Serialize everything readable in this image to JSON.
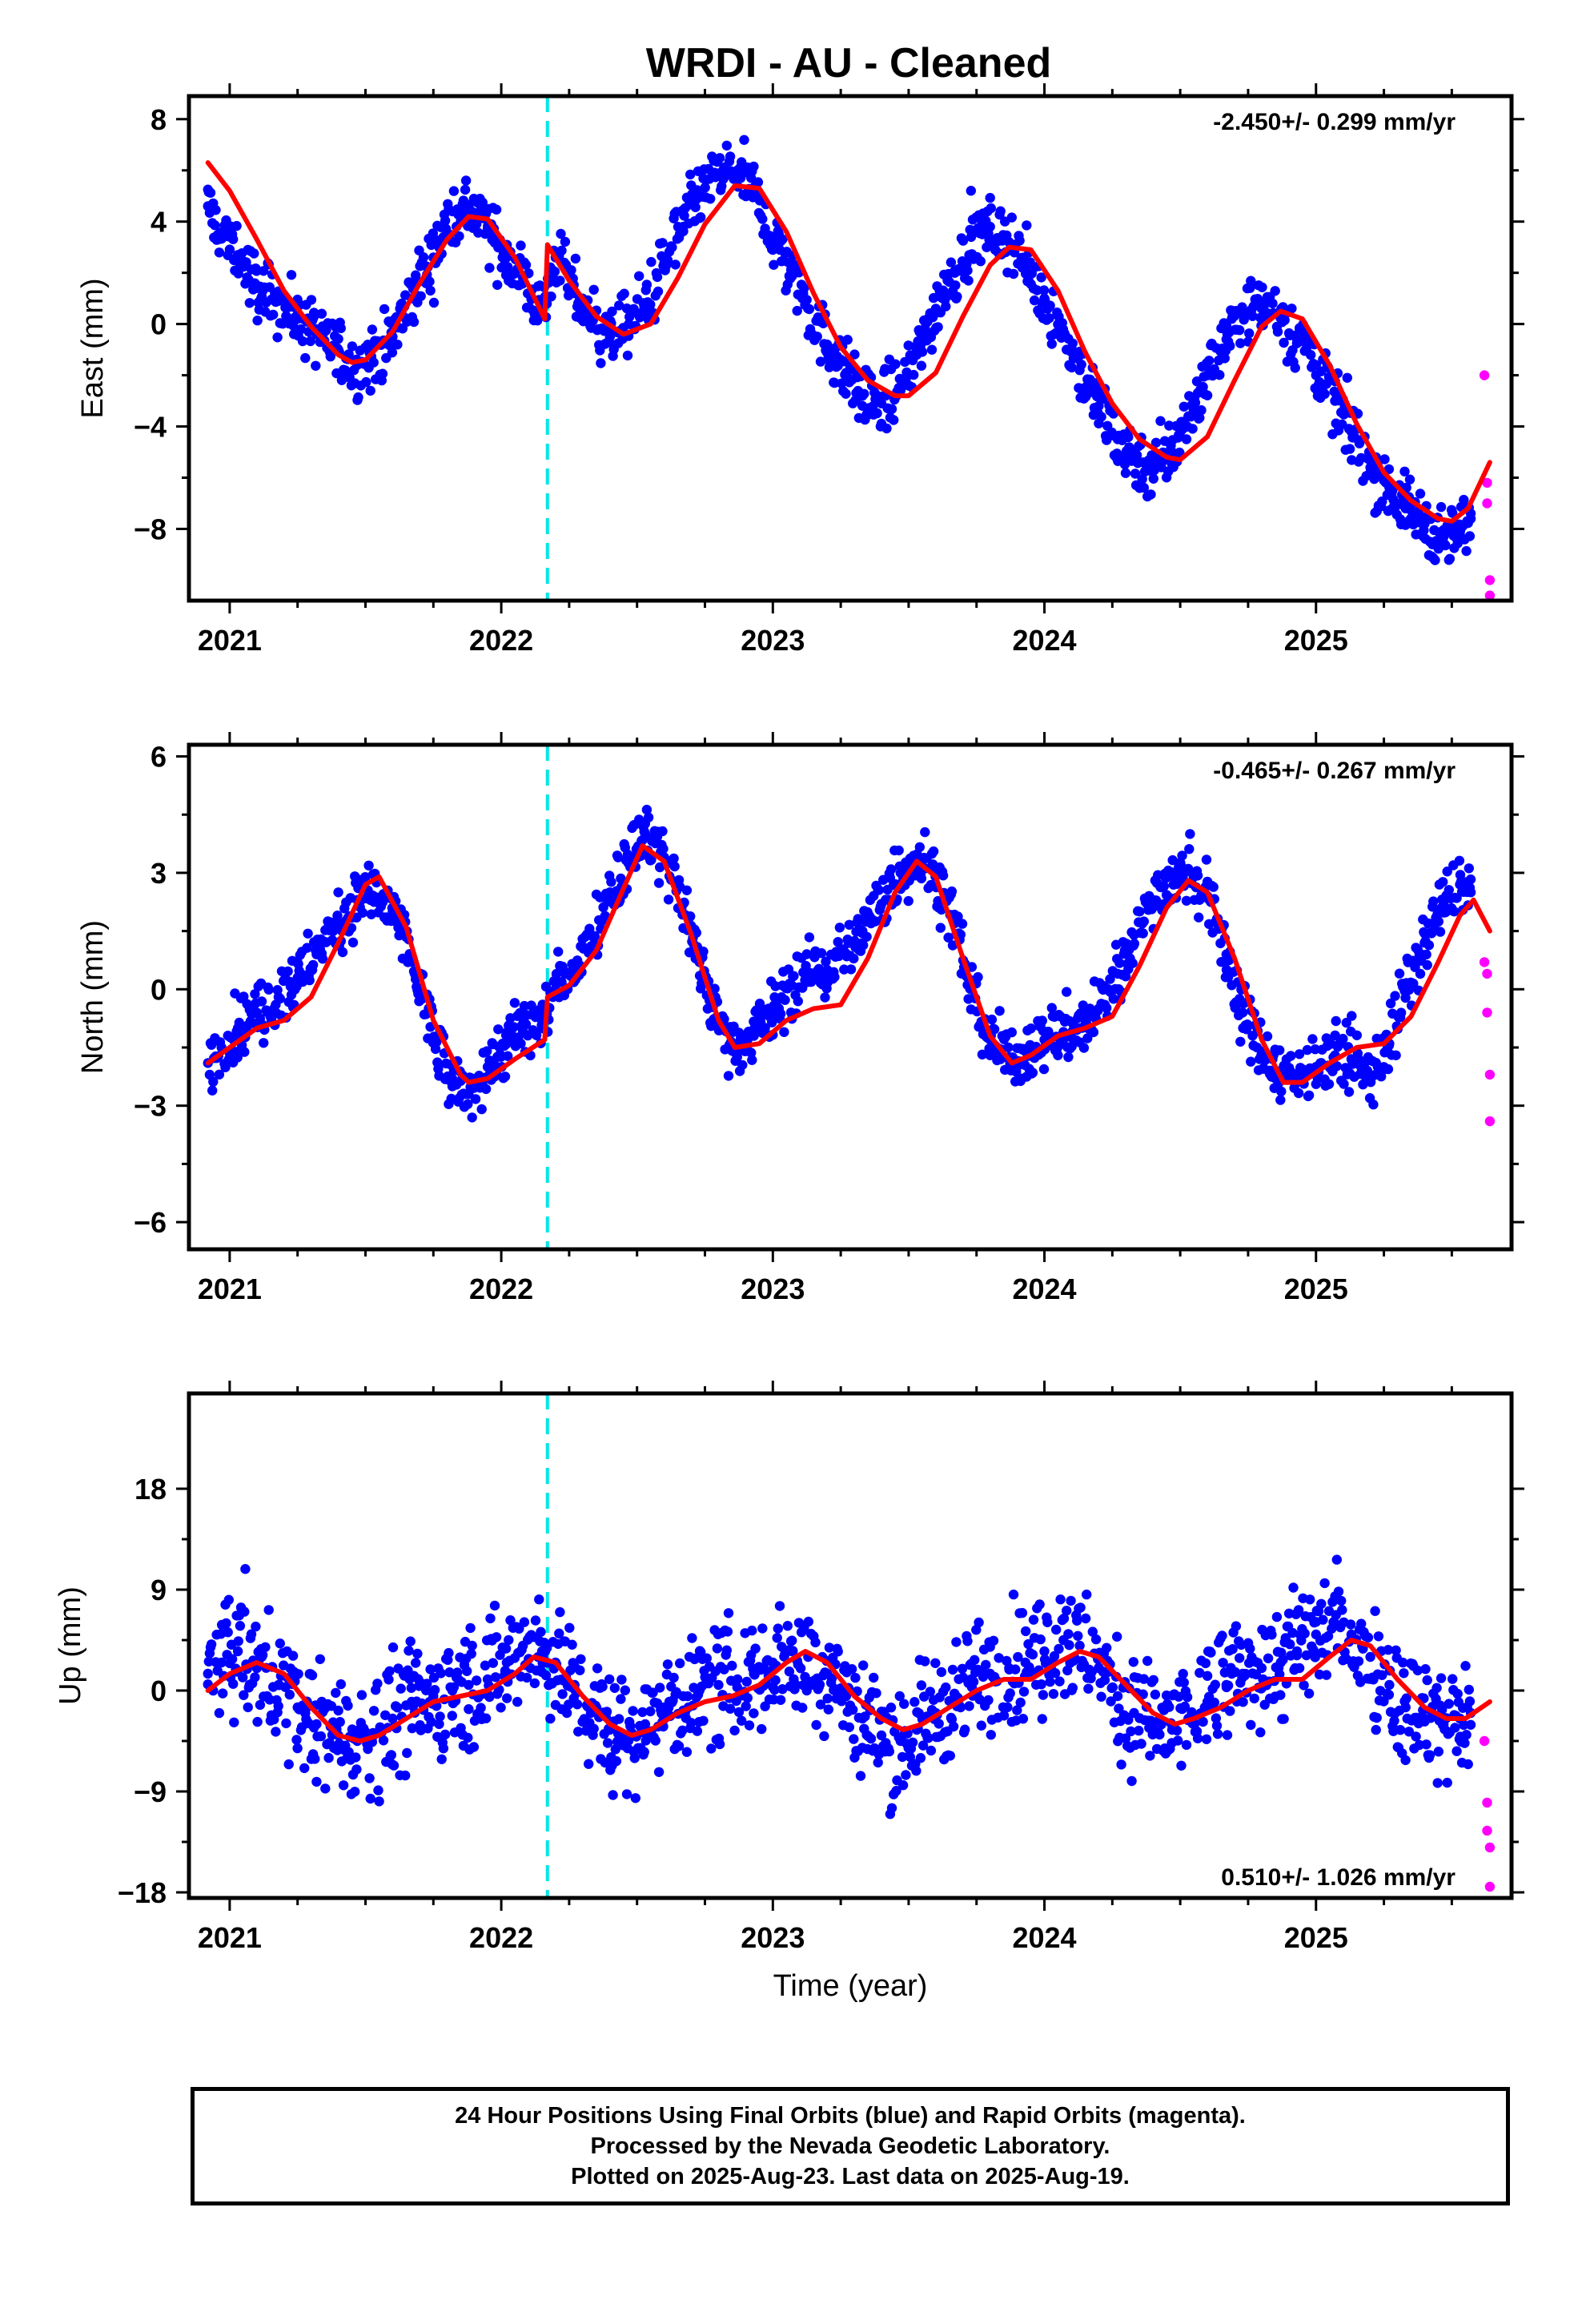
{
  "title": "WRDI  - AU - Cleaned",
  "footer": {
    "line1": "24 Hour Positions Using Final Orbits (blue) and Rapid Orbits (magenta).",
    "line2": "Processed by the Nevada Geodetic Laboratory.",
    "line3": "Plotted on 2025-Aug-23. Last data on 2025-Aug-19."
  },
  "colors": {
    "final": "#0000ff",
    "rapid": "#ff00ff",
    "model": "#ff0000",
    "event": "#00e5e5"
  },
  "chart_data": [
    {
      "type": "scatter",
      "ylabel": "East (mm)",
      "xlabel": "",
      "rate": "-2.450+/- 0.299 mm/yr",
      "rate_position": "top-right",
      "xlim": [
        2020.85,
        2025.72
      ],
      "ylim": [
        -10.8,
        8.9
      ],
      "xticks": [
        2021,
        2022,
        2023,
        2024,
        2025
      ],
      "xtick_labels": [
        "2021",
        "2022",
        "2023",
        "2024",
        "2025"
      ],
      "yticks": [
        8,
        4,
        0,
        -4,
        -8
      ],
      "ytick_labels": [
        "8",
        "4",
        "0",
        "−4",
        "−8"
      ],
      "event_lines": [
        2022.17
      ],
      "series": [
        {
          "role": "final-orbit-points",
          "x": [
            2020.92,
            2020.97,
            2021.03,
            2021.1,
            2021.18,
            2021.25,
            2021.32,
            2021.4,
            2021.47,
            2021.53,
            2021.6,
            2021.67,
            2021.75,
            2021.82,
            2021.88,
            2021.95,
            2022.02,
            2022.08,
            2022.15,
            2022.2,
            2022.27,
            2022.33,
            2022.4,
            2022.47,
            2022.53,
            2022.6,
            2022.67,
            2022.73,
            2022.8,
            2022.87,
            2022.93,
            2023.0,
            2023.07,
            2023.13,
            2023.2,
            2023.27,
            2023.33,
            2023.4,
            2023.47,
            2023.53,
            2023.6,
            2023.67,
            2023.73,
            2023.8,
            2023.87,
            2023.93,
            2024.0,
            2024.07,
            2024.13,
            2024.2,
            2024.27,
            2024.33,
            2024.4,
            2024.47,
            2024.53,
            2024.6,
            2024.67,
            2024.73,
            2024.8,
            2024.87,
            2024.93,
            2025.0,
            2025.07,
            2025.13,
            2025.2,
            2025.27,
            2025.33,
            2025.4,
            2025.47,
            2025.53,
            2025.57
          ],
          "y": [
            4.6,
            3.4,
            2.7,
            1.4,
            0.9,
            0.2,
            -0.4,
            -1.0,
            -1.6,
            -1.5,
            -0.5,
            1.0,
            2.6,
            4.4,
            4.6,
            3.7,
            2.6,
            1.8,
            0.6,
            2.6,
            1.2,
            0.3,
            -0.5,
            0.0,
            0.8,
            2.2,
            3.8,
            5.0,
            5.8,
            6.0,
            5.2,
            3.4,
            2.0,
            0.6,
            -0.8,
            -1.9,
            -2.8,
            -3.1,
            -2.6,
            -1.2,
            0.6,
            2.0,
            3.4,
            3.8,
            3.2,
            2.2,
            1.0,
            -0.4,
            -1.8,
            -3.2,
            -4.5,
            -5.2,
            -5.6,
            -5.0,
            -3.6,
            -2.0,
            -0.6,
            0.5,
            0.6,
            0.4,
            -0.6,
            -1.6,
            -3.0,
            -4.2,
            -5.6,
            -6.4,
            -7.2,
            -7.8,
            -8.3,
            -8.2,
            -7.6
          ]
        },
        {
          "role": "rapid-orbit-points",
          "x": [
            2025.62,
            2025.63,
            2025.63,
            2025.64,
            2025.64
          ],
          "y": [
            -2.0,
            -6.2,
            -7.0,
            -10.0,
            -10.6
          ]
        },
        {
          "role": "model-fit",
          "x": [
            2020.92,
            2021.0,
            2021.1,
            2021.2,
            2021.3,
            2021.4,
            2021.45,
            2021.5,
            2021.6,
            2021.7,
            2021.8,
            2021.88,
            2021.95,
            2022.05,
            2022.16,
            2022.17,
            2022.25,
            2022.35,
            2022.45,
            2022.55,
            2022.65,
            2022.75,
            2022.86,
            2022.95,
            2023.05,
            2023.15,
            2023.25,
            2023.35,
            2023.45,
            2023.5,
            2023.6,
            2023.7,
            2023.8,
            2023.87,
            2023.95,
            2024.05,
            2024.15,
            2024.25,
            2024.35,
            2024.45,
            2024.5,
            2024.6,
            2024.7,
            2024.8,
            2024.87,
            2024.95,
            2025.05,
            2025.15,
            2025.25,
            2025.35,
            2025.45,
            2025.5,
            2025.56,
            2025.64
          ],
          "y": [
            6.3,
            5.2,
            3.3,
            1.3,
            -0.1,
            -1.2,
            -1.5,
            -1.4,
            -0.3,
            1.6,
            3.3,
            4.2,
            4.1,
            2.6,
            0.2,
            3.1,
            1.7,
            0.3,
            -0.4,
            0.0,
            1.8,
            3.9,
            5.4,
            5.3,
            3.6,
            1.2,
            -0.9,
            -2.2,
            -2.8,
            -2.8,
            -1.9,
            0.3,
            2.3,
            3.0,
            2.9,
            1.3,
            -1.1,
            -3.1,
            -4.5,
            -5.2,
            -5.3,
            -4.4,
            -2.2,
            -0.1,
            0.5,
            0.2,
            -1.6,
            -3.9,
            -5.8,
            -6.9,
            -7.6,
            -7.7,
            -7.2,
            -5.4
          ]
        }
      ]
    },
    {
      "type": "scatter",
      "ylabel": "North (mm)",
      "xlabel": "",
      "rate": "-0.465+/- 0.267 mm/yr",
      "rate_position": "top-right",
      "xlim": [
        2020.85,
        2025.72
      ],
      "ylim": [
        -6.7,
        6.3
      ],
      "xticks": [
        2021,
        2022,
        2023,
        2024,
        2025
      ],
      "xtick_labels": [
        "2021",
        "2022",
        "2023",
        "2024",
        "2025"
      ],
      "yticks": [
        6,
        3,
        0,
        -3,
        -6
      ],
      "ytick_labels": [
        "6",
        "3",
        "0",
        "−3",
        "−6"
      ],
      "event_lines": [
        2022.17
      ],
      "series": [
        {
          "role": "final-orbit-points",
          "x": [
            2020.92,
            2020.97,
            2021.03,
            2021.1,
            2021.18,
            2021.25,
            2021.32,
            2021.4,
            2021.47,
            2021.53,
            2021.6,
            2021.67,
            2021.75,
            2021.82,
            2021.88,
            2021.95,
            2022.02,
            2022.08,
            2022.15,
            2022.2,
            2022.27,
            2022.33,
            2022.4,
            2022.47,
            2022.53,
            2022.6,
            2022.67,
            2022.73,
            2022.8,
            2022.87,
            2022.93,
            2023.0,
            2023.07,
            2023.13,
            2023.2,
            2023.27,
            2023.33,
            2023.4,
            2023.47,
            2023.53,
            2023.6,
            2023.67,
            2023.73,
            2023.8,
            2023.87,
            2023.93,
            2024.0,
            2024.07,
            2024.13,
            2024.2,
            2024.27,
            2024.33,
            2024.4,
            2024.47,
            2024.53,
            2024.6,
            2024.67,
            2024.73,
            2024.8,
            2024.87,
            2024.93,
            2025.0,
            2025.07,
            2025.13,
            2025.2,
            2025.27,
            2025.33,
            2025.4,
            2025.47,
            2025.53,
            2025.57
          ],
          "y": [
            -1.9,
            -1.5,
            -1.0,
            -0.6,
            -0.2,
            0.3,
            0.9,
            1.7,
            2.3,
            2.4,
            2.0,
            0.8,
            -1.3,
            -2.5,
            -2.7,
            -2.0,
            -1.4,
            -1.1,
            -0.8,
            0.0,
            0.6,
            1.4,
            2.5,
            3.4,
            4.0,
            3.4,
            2.2,
            0.7,
            -0.9,
            -1.4,
            -1.2,
            -0.6,
            0.1,
            0.4,
            0.5,
            0.9,
            1.5,
            2.2,
            3.0,
            3.4,
            3.0,
            1.7,
            0.0,
            -1.3,
            -1.8,
            -1.6,
            -1.3,
            -1.1,
            -1.0,
            -0.5,
            0.4,
            1.4,
            2.3,
            2.9,
            3.1,
            2.4,
            0.9,
            -0.6,
            -1.6,
            -2.1,
            -2.3,
            -2.0,
            -1.7,
            -1.8,
            -2.3,
            -1.4,
            0.0,
            1.2,
            2.2,
            2.7,
            2.5
          ]
        },
        {
          "role": "rapid-orbit-points",
          "x": [
            2025.62,
            2025.63,
            2025.63,
            2025.64,
            2025.64
          ],
          "y": [
            0.7,
            0.4,
            -0.6,
            -2.2,
            -3.4
          ]
        },
        {
          "role": "model-fit",
          "x": [
            2020.92,
            2021.0,
            2021.1,
            2021.2,
            2021.3,
            2021.4,
            2021.5,
            2021.55,
            2021.65,
            2021.75,
            2021.85,
            2021.88,
            2021.95,
            2022.05,
            2022.16,
            2022.17,
            2022.25,
            2022.35,
            2022.45,
            2022.52,
            2022.6,
            2022.7,
            2022.8,
            2022.86,
            2022.95,
            2023.05,
            2023.15,
            2023.25,
            2023.35,
            2023.45,
            2023.53,
            2023.6,
            2023.7,
            2023.8,
            2023.88,
            2023.95,
            2024.05,
            2024.15,
            2024.25,
            2024.35,
            2024.45,
            2024.53,
            2024.6,
            2024.7,
            2024.8,
            2024.88,
            2024.95,
            2025.05,
            2025.15,
            2025.25,
            2025.35,
            2025.45,
            2025.53,
            2025.58,
            2025.64
          ],
          "y": [
            -1.9,
            -1.5,
            -1.0,
            -0.8,
            -0.2,
            1.2,
            2.7,
            2.9,
            1.6,
            -0.8,
            -2.2,
            -2.4,
            -2.3,
            -1.8,
            -1.3,
            -0.2,
            0.1,
            1.0,
            2.6,
            3.7,
            3.3,
            1.4,
            -0.8,
            -1.5,
            -1.4,
            -0.8,
            -0.5,
            -0.4,
            0.8,
            2.5,
            3.3,
            2.9,
            0.8,
            -1.2,
            -1.9,
            -1.7,
            -1.2,
            -1.0,
            -0.7,
            0.6,
            2.1,
            2.8,
            2.5,
            0.8,
            -1.3,
            -2.4,
            -2.4,
            -1.9,
            -1.5,
            -1.4,
            -0.7,
            0.7,
            1.9,
            2.3,
            1.5
          ]
        }
      ]
    },
    {
      "type": "scatter",
      "ylabel": "Up (mm)",
      "xlabel": "Time (year)",
      "rate": "0.510+/- 1.026 mm/yr",
      "rate_position": "bottom-right",
      "xlim": [
        2020.85,
        2025.72
      ],
      "ylim": [
        -18.5,
        26.5
      ],
      "xticks": [
        2021,
        2022,
        2023,
        2024,
        2025
      ],
      "xtick_labels": [
        "2021",
        "2022",
        "2023",
        "2024",
        "2025"
      ],
      "yticks": [
        18,
        9,
        0,
        -9,
        -18
      ],
      "ytick_labels": [
        "18",
        "9",
        "0",
        "−9",
        "−18"
      ],
      "event_lines": [
        2022.17
      ],
      "series": [
        {
          "role": "final-orbit-points",
          "x": [
            2020.92,
            2020.97,
            2021.03,
            2021.1,
            2021.18,
            2021.25,
            2021.32,
            2021.4,
            2021.47,
            2021.53,
            2021.6,
            2021.67,
            2021.75,
            2021.82,
            2021.88,
            2021.95,
            2022.02,
            2022.08,
            2022.15,
            2022.2,
            2022.27,
            2022.33,
            2022.4,
            2022.47,
            2022.53,
            2022.6,
            2022.67,
            2022.73,
            2022.8,
            2022.87,
            2022.93,
            2023.0,
            2023.07,
            2023.13,
            2023.2,
            2023.27,
            2023.33,
            2023.4,
            2023.47,
            2023.53,
            2023.6,
            2023.67,
            2023.73,
            2023.8,
            2023.87,
            2023.93,
            2024.0,
            2024.07,
            2024.13,
            2024.2,
            2024.27,
            2024.33,
            2024.4,
            2024.47,
            2024.53,
            2024.6,
            2024.67,
            2024.73,
            2024.8,
            2024.87,
            2024.93,
            2025.0,
            2025.07,
            2025.13,
            2025.2,
            2025.27,
            2025.33,
            2025.4,
            2025.47,
            2025.53,
            2025.57
          ],
          "y": [
            1.5,
            2.5,
            3.5,
            2.0,
            0.5,
            -1.5,
            -3.0,
            -4.0,
            -4.5,
            -4.0,
            -2.5,
            -1.0,
            -0.5,
            0.0,
            0.5,
            1.0,
            2.5,
            4.0,
            3.5,
            2.5,
            0.5,
            -2.0,
            -3.5,
            -4.0,
            -3.0,
            -1.5,
            -0.5,
            0.0,
            0.5,
            1.0,
            1.5,
            2.5,
            3.5,
            3.0,
            1.5,
            -0.5,
            -2.5,
            -4.0,
            -4.5,
            -3.5,
            -2.0,
            -0.5,
            1.0,
            1.5,
            2.0,
            2.5,
            3.5,
            4.5,
            4.0,
            2.0,
            -0.5,
            -2.0,
            -3.0,
            -3.5,
            -2.5,
            -1.0,
            0.5,
            1.5,
            2.0,
            2.5,
            3.5,
            5.0,
            6.0,
            5.0,
            3.0,
            0.5,
            -1.5,
            -2.5,
            -3.0,
            -2.5,
            -2.0
          ]
        },
        {
          "role": "rapid-orbit-points",
          "x": [
            2025.62,
            2025.63,
            2025.63,
            2025.64,
            2025.64
          ],
          "y": [
            -4.5,
            -10.0,
            -12.5,
            -14.0,
            -17.5
          ]
        },
        {
          "role": "model-fit",
          "x": [
            2020.92,
            2021.0,
            2021.1,
            2021.2,
            2021.3,
            2021.4,
            2021.48,
            2021.55,
            2021.65,
            2021.75,
            2021.85,
            2021.95,
            2022.05,
            2022.12,
            2022.2,
            2022.3,
            2022.4,
            2022.48,
            2022.55,
            2022.65,
            2022.75,
            2022.85,
            2022.95,
            2023.05,
            2023.12,
            2023.2,
            2023.3,
            2023.4,
            2023.48,
            2023.55,
            2023.65,
            2023.75,
            2023.85,
            2023.95,
            2024.05,
            2024.13,
            2024.2,
            2024.3,
            2024.4,
            2024.48,
            2024.55,
            2024.65,
            2024.75,
            2024.85,
            2024.95,
            2025.05,
            2025.13,
            2025.2,
            2025.3,
            2025.4,
            2025.48,
            2025.55,
            2025.64
          ],
          "y": [
            0.0,
            1.5,
            2.5,
            1.5,
            -1.5,
            -4.0,
            -4.5,
            -4.0,
            -2.5,
            -1.0,
            -0.5,
            0.0,
            1.5,
            3.0,
            2.5,
            -0.5,
            -3.0,
            -4.0,
            -3.5,
            -2.0,
            -1.0,
            -0.5,
            0.5,
            2.5,
            3.5,
            2.5,
            -0.5,
            -2.5,
            -3.5,
            -3.0,
            -1.5,
            0.0,
            1.0,
            1.0,
            2.5,
            3.5,
            3.0,
            0.5,
            -2.0,
            -3.0,
            -2.5,
            -1.5,
            0.0,
            1.0,
            1.0,
            3.0,
            4.5,
            4.0,
            1.0,
            -1.5,
            -2.5,
            -2.5,
            -1.0
          ]
        }
      ]
    }
  ]
}
